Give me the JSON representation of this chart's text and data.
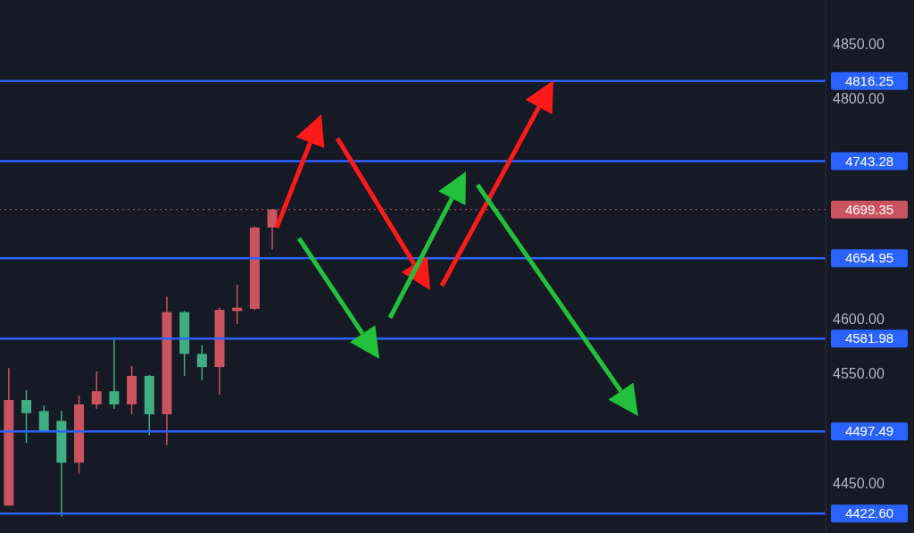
{
  "chart_data": {
    "type": "candlestick",
    "categories": [
      null,
      null,
      null,
      null,
      null,
      null,
      null,
      null,
      null,
      null,
      null,
      null,
      null,
      null,
      null,
      null,
      null,
      null,
      null,
      null,
      null,
      null,
      null,
      null,
      null,
      null,
      null,
      null,
      null,
      null,
      null,
      null,
      null,
      null,
      null,
      null,
      null,
      null,
      null,
      null,
      null,
      null,
      null,
      null,
      null,
      null,
      null
    ],
    "ohlc": [
      [
        4430,
        4555,
        4430,
        4526
      ],
      [
        4526,
        4535,
        4487,
        4514
      ],
      [
        4516,
        4521,
        4498,
        4498
      ],
      [
        4507,
        4516,
        4420,
        4469
      ],
      [
        4469,
        4530,
        4459,
        4522
      ],
      [
        4522,
        4552,
        4518,
        4534
      ],
      [
        4534,
        4582,
        4518,
        4522
      ],
      [
        4522,
        4557,
        4513,
        4548
      ],
      [
        4548,
        4549,
        4494,
        4513
      ],
      [
        4513,
        4620,
        4485,
        4606
      ],
      [
        4606,
        4607,
        4548,
        4568
      ],
      [
        4568,
        4576,
        4544,
        4556
      ],
      [
        4556,
        4610,
        4531,
        4608
      ],
      [
        4607,
        4631,
        4595,
        4610
      ],
      [
        4609,
        4684,
        4608,
        4683
      ],
      [
        4683,
        4700,
        4663,
        4699.35
      ],
      null,
      null,
      null,
      null,
      null,
      null,
      null,
      null,
      null,
      null,
      null,
      null,
      null,
      null,
      null,
      null,
      null,
      null,
      null,
      null,
      null,
      null,
      null,
      null,
      null,
      null,
      null,
      null,
      null,
      null,
      null
    ],
    "colors": [
      "#c9545f",
      "#3fae83",
      "#3fae83",
      "#3fae83",
      "#c9545f",
      "#c9545f",
      "#3fae83",
      "#c9545f",
      "#3fae83",
      "#c9545f",
      "#3fae83",
      "#3fae83",
      "#c9545f",
      "#c9545f",
      "#c9545f",
      "#c9545f",
      null,
      null,
      null,
      null,
      null,
      null,
      null,
      null,
      null,
      null,
      null,
      null,
      null,
      null,
      null,
      null,
      null,
      null,
      null,
      null,
      null,
      null,
      null,
      null,
      null,
      null,
      null,
      null,
      null,
      null,
      null
    ],
    "ylim": [
      4405,
      4890
    ],
    "yticks": [
      {
        "value": 4450,
        "label": "4450.00"
      },
      {
        "value": 4550,
        "label": "4550.00"
      },
      {
        "value": 4600,
        "label": "4600.00"
      },
      {
        "value": 4800,
        "label": "4800.00"
      },
      {
        "value": 4850,
        "label": "4850.00"
      }
    ],
    "tick_labels": "y",
    "grid": false,
    "ref_lines": [
      {
        "axis": "y",
        "value": 4816.25,
        "label": "4816.25",
        "color": "#2962ff",
        "line_style": "solid"
      },
      {
        "axis": "y",
        "value": 4743.28,
        "label": "4743.28",
        "color": "#2962ff",
        "line_style": "solid"
      },
      {
        "axis": "y",
        "value": 4699.35,
        "label": "4699.35",
        "color": "#c9545f",
        "line_style": "dotted"
      },
      {
        "axis": "y",
        "value": 4654.95,
        "label": "4654.95",
        "color": "#2962ff",
        "line_style": "solid"
      },
      {
        "axis": "y",
        "value": 4581.98,
        "label": "4581.98",
        "color": "#2962ff",
        "line_style": "solid"
      },
      {
        "axis": "y",
        "value": 4497.49,
        "label": "4497.49",
        "color": "#2962ff",
        "line_style": "solid"
      },
      {
        "axis": "y",
        "value": 4422.6,
        "label": "4422.60",
        "color": "#2962ff",
        "line_style": "solid"
      }
    ]
  }
}
